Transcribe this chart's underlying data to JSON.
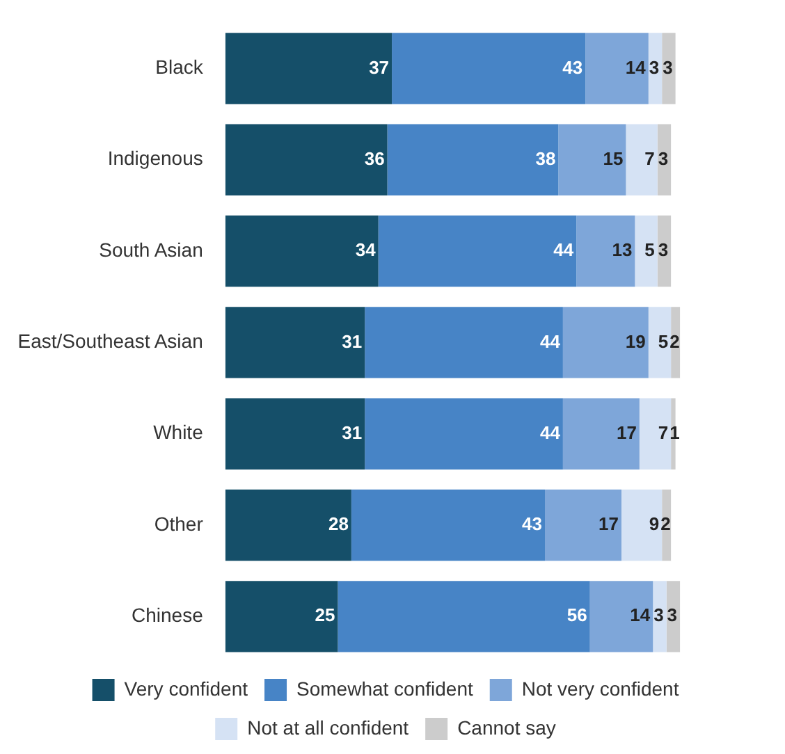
{
  "chart_data": {
    "type": "bar",
    "orientation": "horizontal",
    "stacked": true,
    "data_labels": true,
    "legend": "bottom",
    "categories": [
      "Black",
      "Indigenous",
      "South Asian",
      "East/Southeast Asian",
      "White",
      "Other",
      "Chinese"
    ],
    "series": [
      {
        "name": "Very confident",
        "color": "#154f69",
        "values": [
          37,
          36,
          34,
          31,
          31,
          28,
          25
        ]
      },
      {
        "name": "Somewhat confident",
        "color": "#4784c6",
        "values": [
          43,
          38,
          44,
          44,
          44,
          43,
          56
        ]
      },
      {
        "name": "Not very confident",
        "color": "#7ea6d9",
        "values": [
          14,
          15,
          13,
          19,
          17,
          17,
          14
        ]
      },
      {
        "name": "Not at all confident",
        "color": "#d5e2f4",
        "values": [
          3,
          7,
          5,
          5,
          7,
          9,
          3
        ]
      },
      {
        "name": "Cannot say",
        "color": "#cccccc",
        "values": [
          3,
          3,
          3,
          2,
          1,
          2,
          3
        ]
      }
    ]
  }
}
